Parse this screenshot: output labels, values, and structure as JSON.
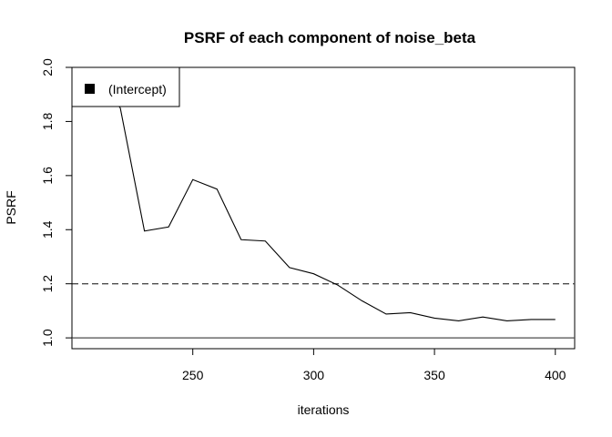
{
  "chart_data": {
    "type": "line",
    "title": "PSRF of each component of noise_beta",
    "xlabel": "iterations",
    "ylabel": "PSRF",
    "xlim": [
      200,
      408
    ],
    "ylim": [
      0.96,
      2.0
    ],
    "xticks": [
      250,
      300,
      350,
      400
    ],
    "yticks": [
      1.0,
      1.2,
      1.4,
      1.6,
      1.8,
      2.0
    ],
    "ytick_labels": [
      "1.0",
      "1.2",
      "1.4",
      "1.6",
      "1.8",
      "2.0"
    ],
    "reference_lines": [
      {
        "y": 1.0,
        "style": "solid"
      },
      {
        "y": 1.2,
        "style": "dashed"
      }
    ],
    "legend": {
      "position": "top-left",
      "entries": [
        "(Intercept)"
      ]
    },
    "series": [
      {
        "name": "(Intercept)",
        "color": "#000000",
        "x": [
          210,
          220,
          230,
          240,
          250,
          260,
          270,
          280,
          290,
          300,
          310,
          320,
          330,
          340,
          350,
          360,
          370,
          380,
          390,
          400
        ],
        "values": [
          1.96,
          1.85,
          1.395,
          1.41,
          1.585,
          1.55,
          1.363,
          1.358,
          1.26,
          1.237,
          1.195,
          1.137,
          1.088,
          1.093,
          1.073,
          1.063,
          1.077,
          1.063,
          1.068,
          1.068
        ]
      }
    ]
  }
}
